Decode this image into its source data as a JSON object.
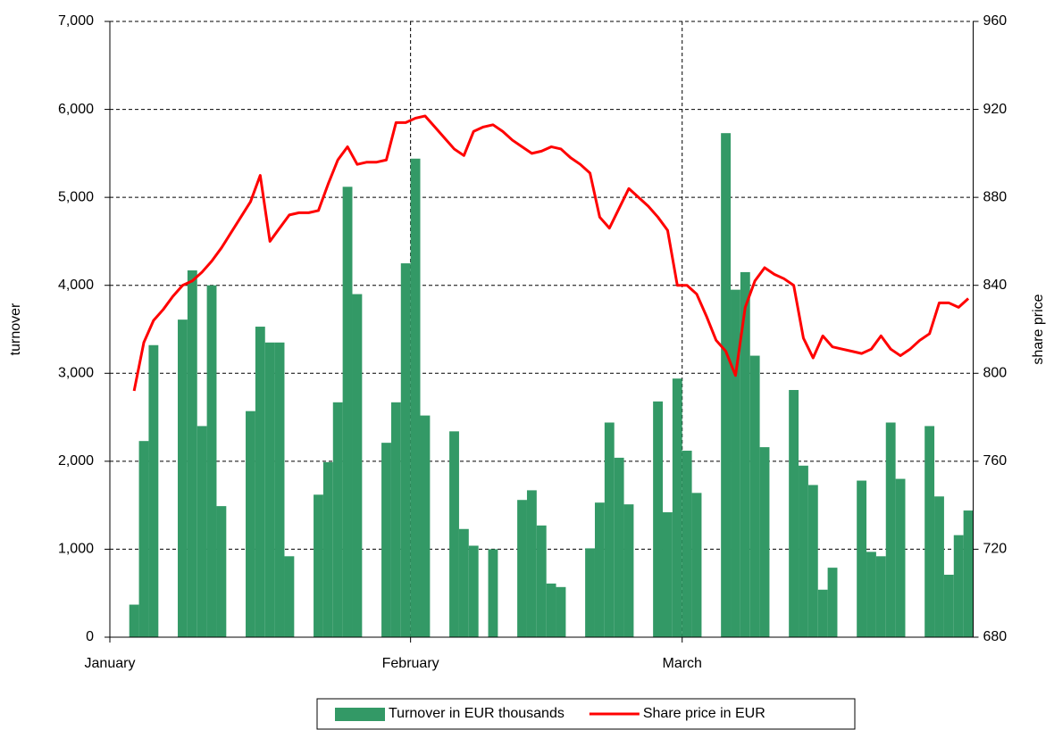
{
  "chart_data": {
    "type": "bar",
    "ylabel": "turnover",
    "y2label": "share price",
    "categories": [
      "January",
      null,
      null,
      null,
      null,
      null,
      null,
      null,
      null,
      null,
      null,
      null,
      null,
      null,
      null,
      null,
      null,
      null,
      null,
      null,
      null,
      null,
      null,
      null,
      null,
      null,
      null,
      null,
      null,
      null,
      null,
      "February",
      null,
      null,
      null,
      null,
      null,
      null,
      null,
      null,
      null,
      null,
      null,
      null,
      null,
      null,
      null,
      null,
      null,
      null,
      null,
      null,
      null,
      null,
      null,
      null,
      null,
      null,
      null,
      "March",
      null,
      null,
      null,
      null,
      null,
      null,
      null,
      null,
      null,
      null,
      null,
      null,
      null,
      null,
      null,
      null,
      null,
      null,
      null,
      null,
      null,
      null,
      null,
      null,
      null,
      null,
      null,
      null,
      null
    ],
    "series": [
      {
        "name": "Turnover in EUR thousands",
        "type": "bar",
        "color": "#339966",
        "values": [
          null,
          null,
          370,
          2230,
          3320,
          null,
          null,
          3610,
          4170,
          2400,
          4000,
          1490,
          null,
          null,
          2570,
          3530,
          3350,
          3350,
          920,
          null,
          null,
          1620,
          1990,
          2670,
          5120,
          3900,
          null,
          null,
          2210,
          2670,
          4250,
          5440,
          2520,
          null,
          null,
          2340,
          1230,
          1040,
          null,
          1000,
          null,
          null,
          1560,
          1670,
          1270,
          610,
          570,
          null,
          null,
          1010,
          1530,
          2440,
          2040,
          1510,
          null,
          null,
          2680,
          1420,
          2940,
          2120,
          1640,
          null,
          null,
          5730,
          3950,
          4150,
          3200,
          2160,
          null,
          null,
          2810,
          1950,
          1730,
          540,
          790,
          null,
          null,
          1780,
          970,
          920,
          2440,
          1800,
          null,
          null,
          2400,
          1600,
          710,
          1160,
          1440
        ]
      },
      {
        "name": "Share price in EUR",
        "type": "line",
        "axis": "y2",
        "color": "#ff0000",
        "values": [
          null,
          null,
          792,
          814,
          824,
          829,
          835,
          840,
          842,
          846,
          851,
          857,
          864,
          871,
          878,
          890,
          860,
          866,
          872,
          873,
          873,
          874,
          886,
          897,
          903,
          895,
          896,
          896,
          897,
          914,
          914,
          916,
          917,
          912,
          907,
          902,
          899,
          910,
          912,
          913,
          910,
          906,
          903,
          900,
          901,
          903,
          902,
          898,
          895,
          891,
          871,
          866,
          875,
          884,
          880,
          876,
          871,
          865,
          840,
          840,
          836,
          826,
          815,
          810,
          799,
          830,
          842,
          848,
          845,
          843,
          840,
          816,
          807,
          817,
          812,
          811,
          810,
          809,
          811,
          817,
          811,
          808,
          811,
          815,
          818,
          832,
          832,
          830,
          834
        ]
      }
    ],
    "ylim": [
      0,
      7000
    ],
    "yticks": [
      0,
      {
        "value": 1000,
        "label": "1,000"
      },
      {
        "value": 2000,
        "label": "2,000"
      },
      {
        "value": 3000,
        "label": "3,000"
      },
      {
        "value": 4000,
        "label": "4,000"
      },
      {
        "value": 5000,
        "label": "5,000"
      },
      {
        "value": 6000,
        "label": "6,000"
      },
      {
        "value": 7000,
        "label": "7,000"
      }
    ],
    "y2lim": [
      680,
      960
    ],
    "y2ticks": [
      680,
      720,
      760,
      800,
      840,
      880,
      920,
      960
    ],
    "grid": true,
    "legend": "bottom"
  }
}
